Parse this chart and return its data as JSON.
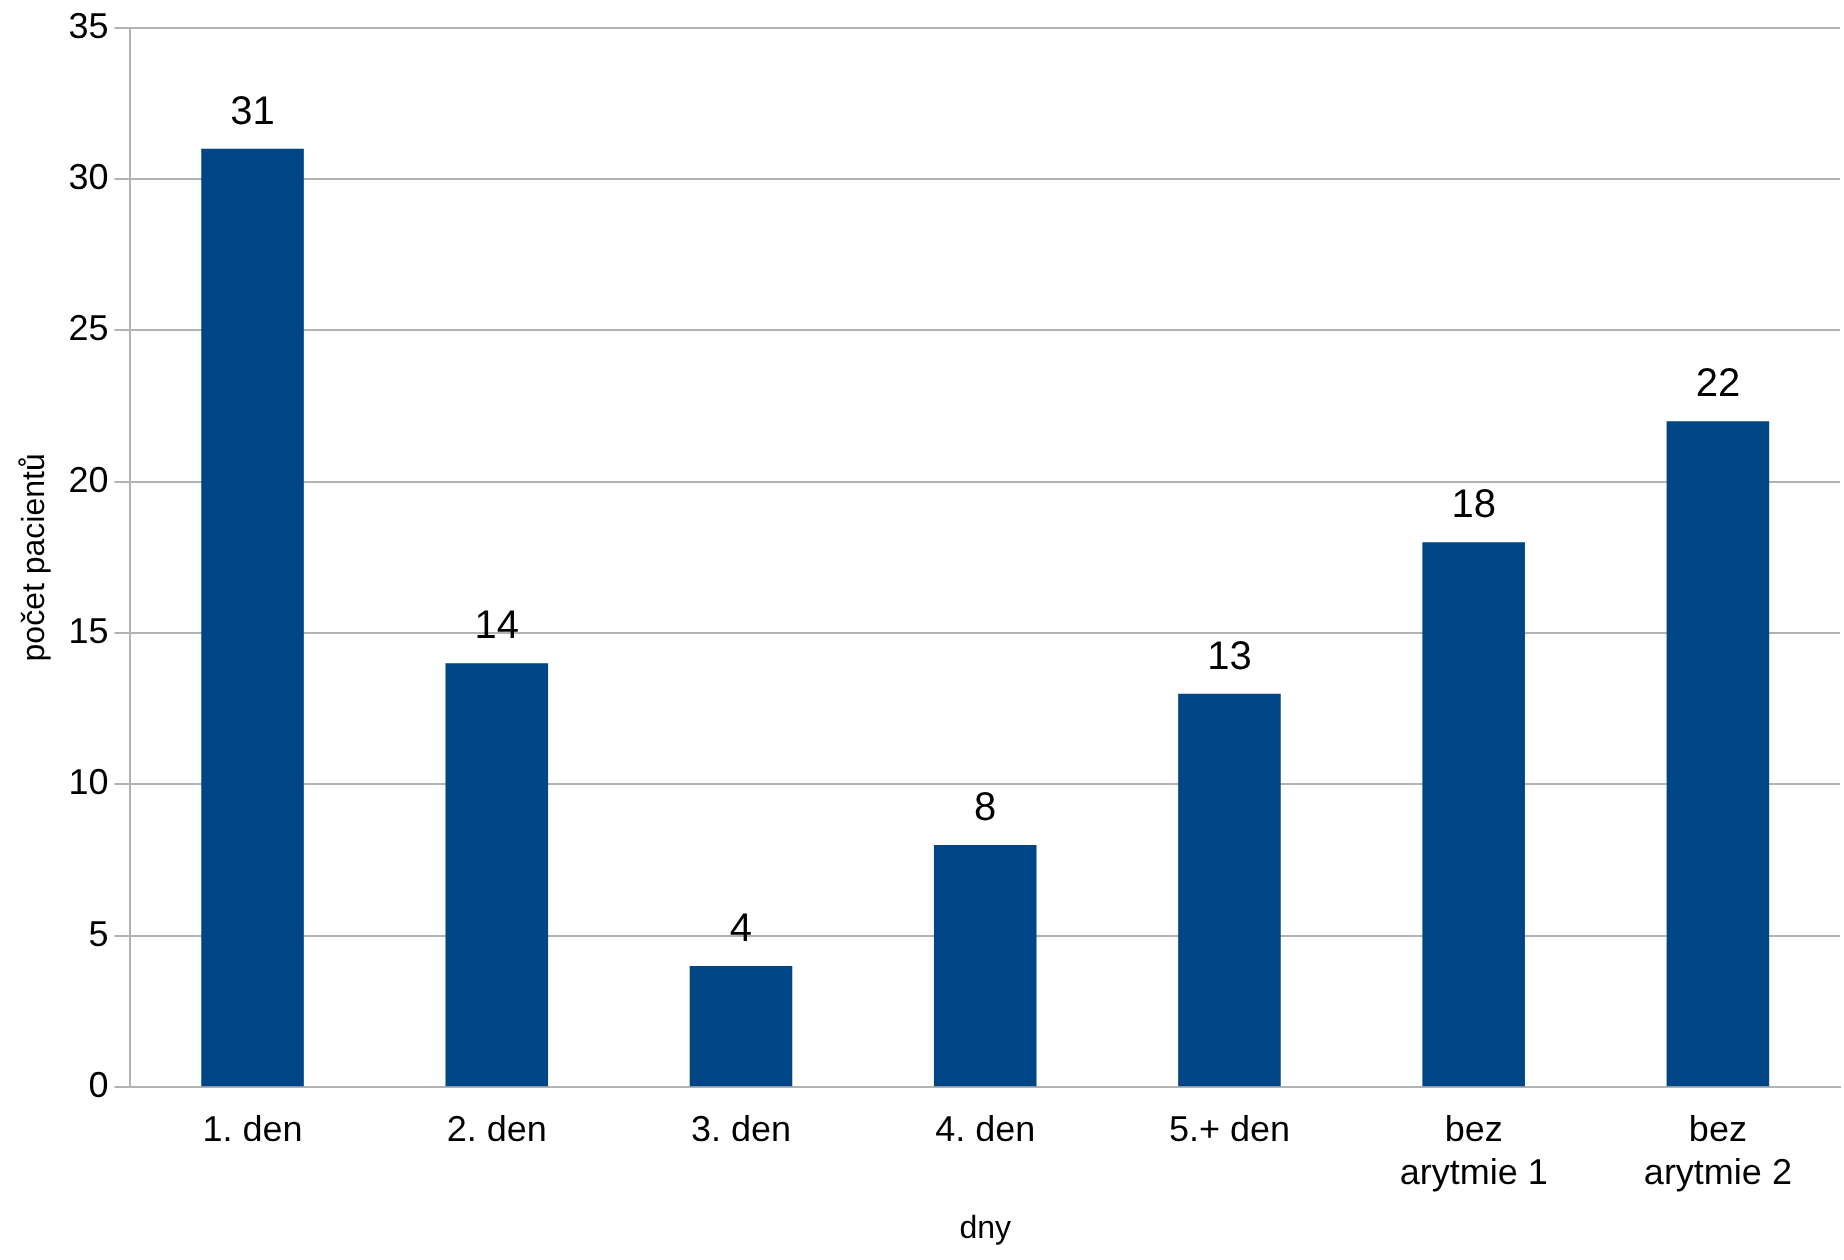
{
  "chart_data": {
    "type": "bar",
    "xlabel": "dny",
    "ylabel": "počet pacientů",
    "categories": [
      "1. den",
      "2. den",
      "3. den",
      "4. den",
      "5.+ den",
      "bez arytmie 1",
      "bez arytmie 2"
    ],
    "values": [
      31,
      14,
      4,
      8,
      13,
      18,
      22
    ],
    "color": "#004586",
    "ylim": [
      0,
      35
    ],
    "yticks": [
      0,
      5,
      10,
      15,
      20,
      25,
      30,
      35
    ],
    "grid": "y",
    "legend": false,
    "data_labels": true
  }
}
